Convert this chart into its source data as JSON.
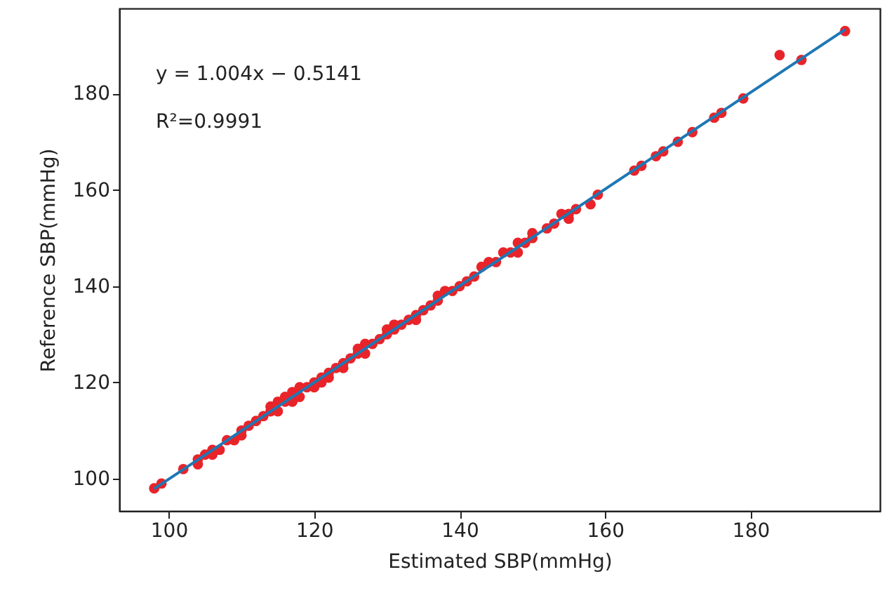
{
  "chart_data": {
    "type": "scatter",
    "xlabel": "Estimated SBP(mmHg)",
    "ylabel": "Reference SBP(mmHg)",
    "annotations": [
      "y = 1.004x − 0.5141",
      "R²=0.9991"
    ],
    "xlim": [
      93.2,
      197.8
    ],
    "ylim": [
      93.3,
      197.7
    ],
    "xticks": [
      100,
      120,
      140,
      160,
      180
    ],
    "yticks": [
      100,
      120,
      140,
      160,
      180
    ],
    "grid": false,
    "series": [
      {
        "color": "#e8242a",
        "marker": "circle",
        "x": [
          98,
          99,
          102,
          104,
          104,
          105,
          106,
          106,
          107,
          108,
          109,
          110,
          110,
          111,
          112,
          113,
          114,
          114,
          115,
          115,
          116,
          116,
          117,
          117,
          118,
          118,
          119,
          120,
          120,
          121,
          121,
          122,
          122,
          123,
          124,
          124,
          125,
          126,
          126,
          127,
          127,
          128,
          129,
          130,
          130,
          131,
          131,
          132,
          133,
          134,
          134,
          135,
          136,
          137,
          137,
          138,
          139,
          140,
          141,
          142,
          143,
          144,
          145,
          146,
          147,
          148,
          148,
          149,
          150,
          150,
          152,
          153,
          154,
          155,
          155,
          156,
          158,
          159,
          164,
          165,
          167,
          168,
          170,
          172,
          175,
          176,
          179,
          184,
          187,
          193
        ],
        "values": [
          98,
          99,
          102,
          104,
          103,
          105,
          106,
          105,
          106,
          108,
          108,
          110,
          109,
          111,
          112,
          113,
          114,
          115,
          116,
          114,
          116,
          117,
          116,
          118,
          117,
          119,
          119,
          120,
          119,
          121,
          120,
          122,
          121,
          123,
          124,
          123,
          125,
          126,
          127,
          128,
          126,
          128,
          129,
          130,
          131,
          131,
          132,
          132,
          133,
          134,
          133,
          135,
          136,
          138,
          137,
          139,
          139,
          140,
          141,
          142,
          144,
          145,
          145,
          147,
          147,
          147,
          149,
          149,
          151,
          150,
          152,
          153,
          155,
          154,
          155,
          156,
          157,
          159,
          164,
          165,
          167,
          168,
          170,
          172,
          175,
          176,
          179,
          188,
          187,
          193
        ]
      },
      {
        "type": "line",
        "color": "#1f77b4",
        "line_style": "solid",
        "marker": "none",
        "x": [
          98,
          193
        ],
        "values": [
          97.9,
          193.3
        ]
      }
    ]
  }
}
